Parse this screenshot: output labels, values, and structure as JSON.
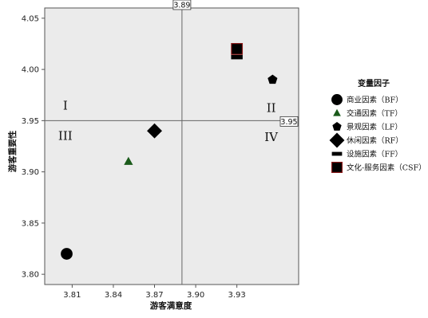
{
  "chart_data": {
    "type": "scatter",
    "xlabel": "游客满意度",
    "ylabel": "游客重要性",
    "xlim": [
      3.79,
      3.975
    ],
    "ylim": [
      3.79,
      4.06
    ],
    "xticks": [
      3.81,
      3.84,
      3.87,
      3.9,
      3.93
    ],
    "xtick_labels": [
      "3.81",
      "3.84",
      "3.87",
      "3.90",
      "3.93"
    ],
    "yticks": [
      3.8,
      3.85,
      3.9,
      3.95,
      4.0,
      4.05
    ],
    "ytick_labels": [
      "3.80",
      "3.85",
      "3.90",
      "3.95",
      "4.00",
      "4.05"
    ],
    "reference_lines": {
      "x": 3.89,
      "x_label": "3.89",
      "y": 3.95,
      "y_label": "3.95"
    },
    "quadrant_labels": [
      {
        "text": "I",
        "x": 3.805,
        "y": 3.9645
      },
      {
        "text": "II",
        "x": 3.955,
        "y": 3.9625
      },
      {
        "text": "III",
        "x": 3.805,
        "y": 3.935
      },
      {
        "text": "IV",
        "x": 3.955,
        "y": 3.934
      }
    ],
    "legend": {
      "title": "变量因子",
      "placement": "right"
    },
    "series": [
      {
        "name": "商业因素（BF）",
        "marker": "circle",
        "color": "#000000",
        "points": [
          {
            "x": 3.806,
            "y": 3.82
          }
        ]
      },
      {
        "name": "交通因素（TF）",
        "marker": "triangle",
        "color": "#1a5a1a",
        "points": [
          {
            "x": 3.851,
            "y": 3.91
          }
        ]
      },
      {
        "name": "景观因素（LF）",
        "marker": "pentagon",
        "color": "#000000",
        "points": [
          {
            "x": 3.956,
            "y": 3.99
          }
        ]
      },
      {
        "name": "休闲因素（RF）",
        "marker": "diamond",
        "color": "#000000",
        "points": [
          {
            "x": 3.87,
            "y": 3.94
          }
        ]
      },
      {
        "name": "设施因素（FF）",
        "marker": "bar",
        "color": "#000000",
        "points": [
          {
            "x": 3.93,
            "y": 4.012
          }
        ]
      },
      {
        "name": "文化-服务因素（CSF）",
        "marker": "square",
        "color": "#000000",
        "outline": "#8b1a1a",
        "points": [
          {
            "x": 3.93,
            "y": 4.02
          }
        ]
      }
    ]
  }
}
